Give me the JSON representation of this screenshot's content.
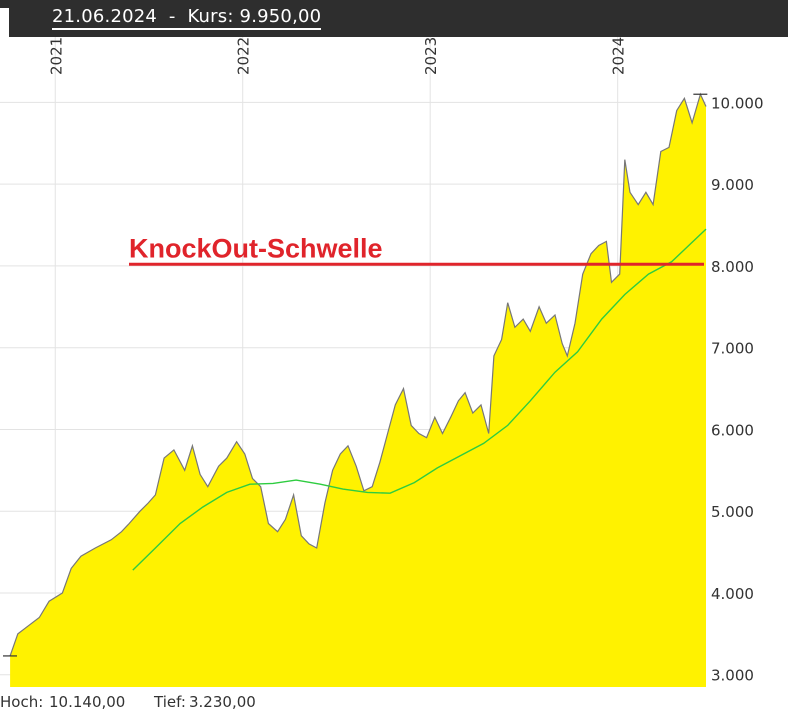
{
  "header": {
    "date": "21.06.2024",
    "separator": "-",
    "price_label": "Kurs:",
    "price": "9.950,00"
  },
  "footer": {
    "high_label": "Hoch:",
    "high_value": "10.140,00",
    "low_label": "Tief:",
    "low_value": "3.230,00"
  },
  "chart_data": {
    "type": "area",
    "x_tick_labels": [
      "2021",
      "2022",
      "2023",
      "2024"
    ],
    "y_tick_labels": [
      "3.000",
      "4.000",
      "5.000",
      "6.000",
      "7.000",
      "8.000",
      "9.000",
      "10.000"
    ],
    "ylim": [
      2850,
      10800
    ],
    "x_range": [
      "2020-10",
      "2024-06"
    ],
    "grid": true,
    "colors": {
      "area_fill": "#fff200",
      "price_line": "#777777",
      "moving_average": "#2ecc40",
      "threshold": "#e0242b"
    },
    "annotation": {
      "text": "KnockOut-Schwelle",
      "value": 8020
    },
    "price_series": [
      [
        "2020-10-05",
        3230
      ],
      [
        "2020-10-20",
        3500
      ],
      [
        "2020-11-10",
        3600
      ],
      [
        "2020-12-01",
        3700
      ],
      [
        "2020-12-20",
        3900
      ],
      [
        "2021-01-15",
        4000
      ],
      [
        "2021-02-01",
        4300
      ],
      [
        "2021-02-20",
        4450
      ],
      [
        "2021-03-20",
        4550
      ],
      [
        "2021-04-20",
        4650
      ],
      [
        "2021-05-10",
        4750
      ],
      [
        "2021-05-25",
        4850
      ],
      [
        "2021-06-15",
        5000
      ],
      [
        "2021-07-01",
        5100
      ],
      [
        "2021-07-15",
        5200
      ],
      [
        "2021-08-01",
        5650
      ],
      [
        "2021-08-20",
        5750
      ],
      [
        "2021-09-10",
        5500
      ],
      [
        "2021-09-25",
        5800
      ],
      [
        "2021-10-10",
        5450
      ],
      [
        "2021-10-25",
        5300
      ],
      [
        "2021-11-15",
        5550
      ],
      [
        "2021-12-01",
        5650
      ],
      [
        "2021-12-20",
        5850
      ],
      [
        "2022-01-05",
        5700
      ],
      [
        "2022-01-20",
        5400
      ],
      [
        "2022-02-05",
        5300
      ],
      [
        "2022-02-20",
        4850
      ],
      [
        "2022-03-10",
        4750
      ],
      [
        "2022-03-25",
        4900
      ],
      [
        "2022-04-10",
        5200
      ],
      [
        "2022-04-25",
        4700
      ],
      [
        "2022-05-10",
        4600
      ],
      [
        "2022-05-25",
        4550
      ],
      [
        "2022-06-10",
        5100
      ],
      [
        "2022-06-25",
        5500
      ],
      [
        "2022-07-10",
        5700
      ],
      [
        "2022-07-25",
        5800
      ],
      [
        "2022-08-10",
        5550
      ],
      [
        "2022-08-25",
        5250
      ],
      [
        "2022-09-10",
        5300
      ],
      [
        "2022-09-25",
        5600
      ],
      [
        "2022-10-10",
        5950
      ],
      [
        "2022-10-25",
        6300
      ],
      [
        "2022-11-10",
        6500
      ],
      [
        "2022-11-25",
        6050
      ],
      [
        "2022-12-10",
        5950
      ],
      [
        "2022-12-25",
        5900
      ],
      [
        "2023-01-10",
        6150
      ],
      [
        "2023-01-25",
        5950
      ],
      [
        "2023-02-10",
        6150
      ],
      [
        "2023-02-25",
        6350
      ],
      [
        "2023-03-10",
        6450
      ],
      [
        "2023-03-25",
        6200
      ],
      [
        "2023-04-10",
        6300
      ],
      [
        "2023-04-25",
        5950
      ],
      [
        "2023-05-05",
        6900
      ],
      [
        "2023-05-20",
        7100
      ],
      [
        "2023-06-01",
        7550
      ],
      [
        "2023-06-15",
        7250
      ],
      [
        "2023-07-01",
        7350
      ],
      [
        "2023-07-15",
        7200
      ],
      [
        "2023-08-01",
        7500
      ],
      [
        "2023-08-15",
        7300
      ],
      [
        "2023-09-01",
        7400
      ],
      [
        "2023-09-15",
        7050
      ],
      [
        "2023-09-25",
        6900
      ],
      [
        "2023-10-10",
        7300
      ],
      [
        "2023-10-25",
        7900
      ],
      [
        "2023-11-10",
        8150
      ],
      [
        "2023-11-25",
        8250
      ],
      [
        "2023-12-10",
        8300
      ],
      [
        "2023-12-20",
        7800
      ],
      [
        "2024-01-05",
        7900
      ],
      [
        "2024-01-15",
        9300
      ],
      [
        "2024-01-25",
        8900
      ],
      [
        "2024-02-10",
        8750
      ],
      [
        "2024-02-25",
        8900
      ],
      [
        "2024-03-10",
        8750
      ],
      [
        "2024-03-25",
        9400
      ],
      [
        "2024-04-10",
        9450
      ],
      [
        "2024-04-25",
        9900
      ],
      [
        "2024-05-10",
        10050
      ],
      [
        "2024-05-25",
        9750
      ],
      [
        "2024-06-10",
        10100
      ],
      [
        "2024-06-21",
        9950
      ]
    ],
    "moving_average": [
      [
        "2021-06-01",
        4280
      ],
      [
        "2021-07-15",
        4550
      ],
      [
        "2021-09-01",
        4850
      ],
      [
        "2021-10-15",
        5050
      ],
      [
        "2021-12-01",
        5230
      ],
      [
        "2022-01-15",
        5330
      ],
      [
        "2022-03-01",
        5340
      ],
      [
        "2022-04-15",
        5380
      ],
      [
        "2022-06-01",
        5330
      ],
      [
        "2022-07-15",
        5270
      ],
      [
        "2022-09-01",
        5230
      ],
      [
        "2022-10-15",
        5220
      ],
      [
        "2022-12-01",
        5350
      ],
      [
        "2023-01-15",
        5530
      ],
      [
        "2023-03-01",
        5680
      ],
      [
        "2023-04-15",
        5830
      ],
      [
        "2023-06-01",
        6050
      ],
      [
        "2023-07-15",
        6350
      ],
      [
        "2023-09-01",
        6700
      ],
      [
        "2023-10-15",
        6950
      ],
      [
        "2023-12-01",
        7350
      ],
      [
        "2024-01-15",
        7650
      ],
      [
        "2024-03-01",
        7900
      ],
      [
        "2024-04-15",
        8050
      ],
      [
        "2024-06-21",
        8450
      ]
    ]
  }
}
